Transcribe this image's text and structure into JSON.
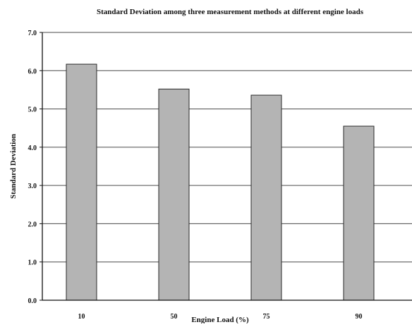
{
  "chart_data": {
    "type": "bar",
    "title": "Standard Deviation among three measurement methods at different engine loads",
    "xlabel": "Engine Load (%)",
    "ylabel": "Standard Deviation",
    "categories": [
      "10",
      "50",
      "75",
      "90"
    ],
    "values": [
      6.17,
      5.52,
      5.36,
      4.55
    ],
    "ylim": [
      0,
      7
    ],
    "yticks": [
      "0.0",
      "1.0",
      "2.0",
      "3.0",
      "4.0",
      "5.0",
      "6.0",
      "7.0"
    ],
    "grid": true,
    "legend": "none",
    "bar_color": "#b4b4b4",
    "bar_edge_color": "#2a2a2a",
    "grid_color": "#4a4a4a"
  }
}
